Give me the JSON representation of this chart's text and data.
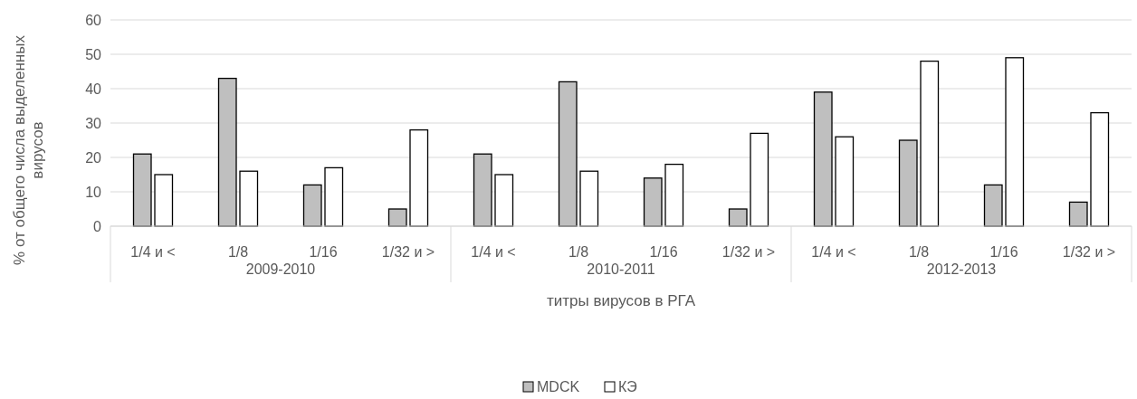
{
  "chart_data": {
    "type": "bar",
    "ylabel": "% от общего числа выделенных вирусов",
    "xlabel": "титры вирусов в РГА",
    "categories": [
      "1/4 и <",
      "1/8",
      "1/16",
      "1/32 и >",
      "1/4 и <",
      "1/8",
      "1/16",
      "1/32 и >",
      "1/4 и <",
      "1/8",
      "1/16",
      "1/32 и >"
    ],
    "annotations": [
      "2009-2010",
      "2010-2011",
      "2012-2013"
    ],
    "series": [
      {
        "name": "MDCK",
        "color": "#bfbfbf",
        "values": [
          21,
          43,
          12,
          5,
          21,
          42,
          14,
          5,
          39,
          25,
          12,
          7
        ]
      },
      {
        "name": "КЭ",
        "color": "#ffffff",
        "values": [
          15,
          16,
          17,
          28,
          15,
          16,
          18,
          27,
          26,
          48,
          49,
          33
        ]
      }
    ],
    "ylim": [
      0,
      60
    ],
    "yticks": [
      0,
      10,
      20,
      30,
      40,
      50,
      60
    ],
    "grid": "y",
    "legend": "bottom"
  }
}
